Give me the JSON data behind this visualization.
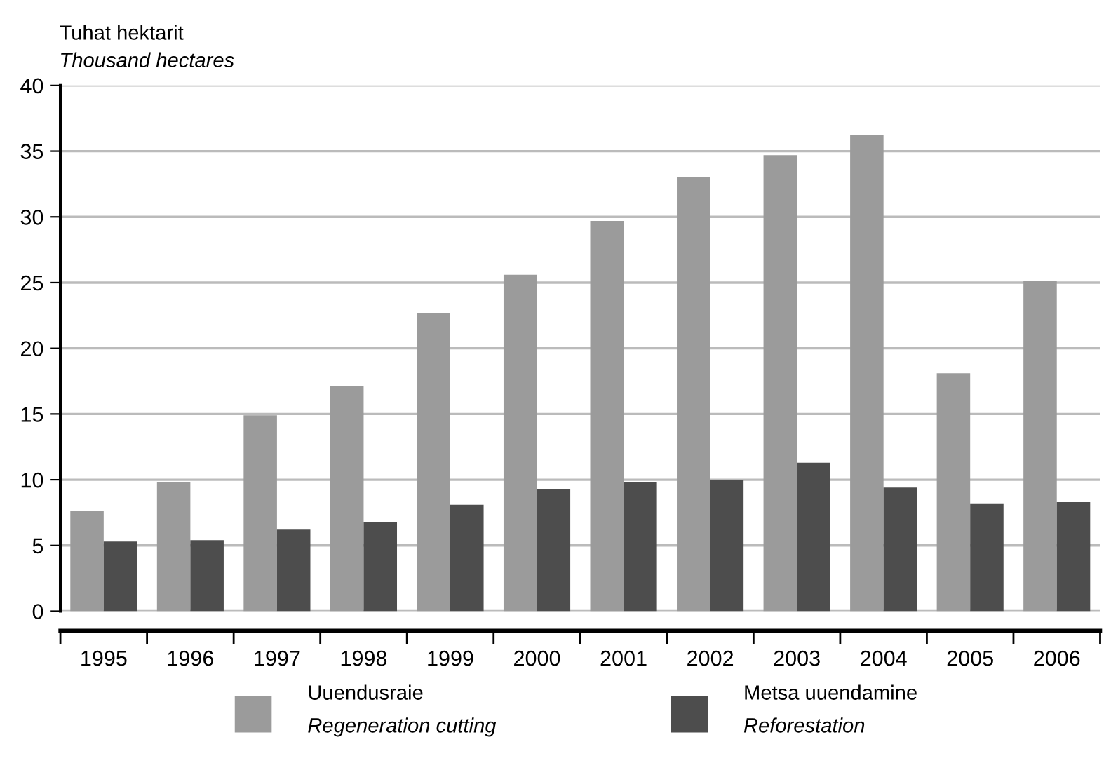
{
  "chart_data": {
    "type": "bar",
    "ylabel": "Tuhat hektarit\nThousand hectares",
    "categories": [
      "1995",
      "1996",
      "1997",
      "1998",
      "1999",
      "2000",
      "2001",
      "2002",
      "2003",
      "2004",
      "2005",
      "2006"
    ],
    "series": [
      {
        "name": "Uuendusraie\nRegeneration cutting",
        "color": "#9b9b9b",
        "values": [
          7.6,
          9.8,
          14.9,
          17.1,
          22.7,
          25.6,
          29.7,
          33.0,
          34.7,
          36.2,
          18.1,
          25.1
        ]
      },
      {
        "name": "Metsa uuendamine\nReforestation",
        "color": "#4d4d4d",
        "values": [
          5.3,
          5.4,
          6.2,
          6.8,
          8.1,
          9.3,
          9.8,
          10.0,
          11.3,
          9.4,
          8.2,
          8.3
        ]
      }
    ],
    "ylim": [
      0,
      40
    ],
    "yticks": [
      0,
      5,
      10,
      15,
      20,
      25,
      30,
      35,
      40
    ],
    "grid": "y",
    "legend": "bottom"
  }
}
